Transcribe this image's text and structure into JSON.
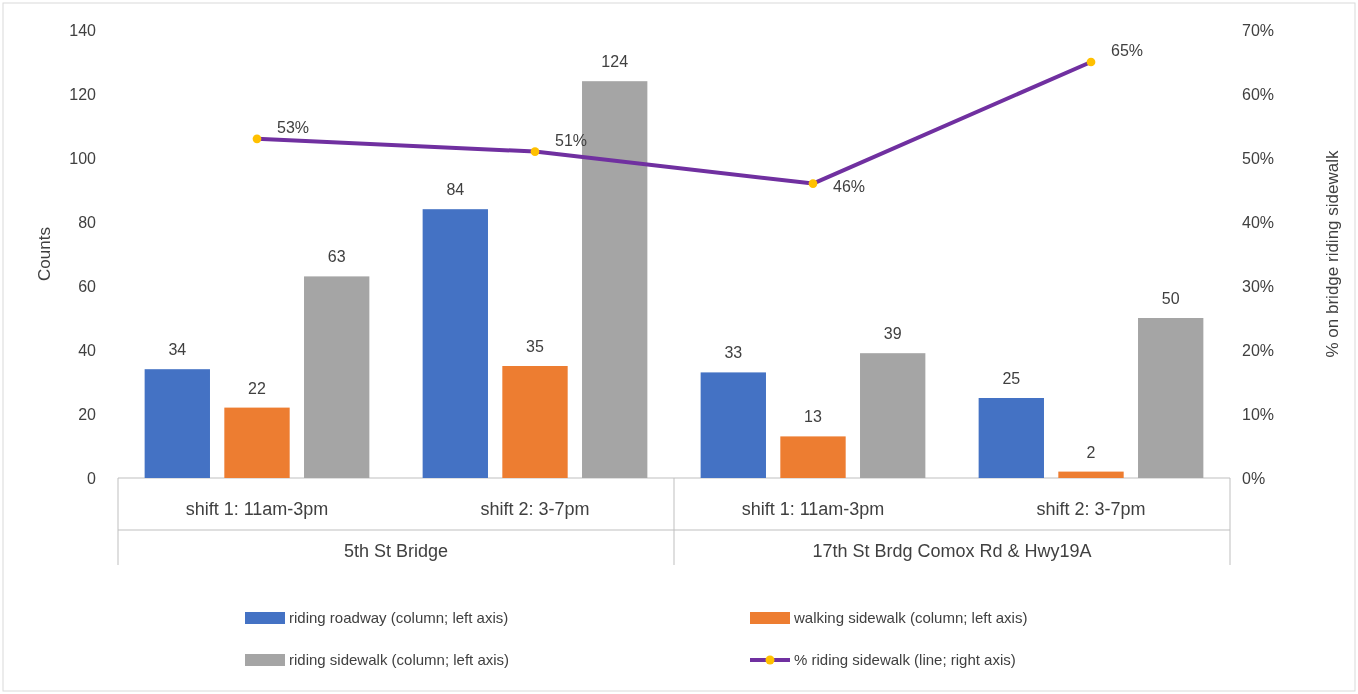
{
  "chart_data": {
    "type": "bar",
    "ylabel": "Counts",
    "y2label": "% on bridge riding sidewalk",
    "categories": [
      "shift 1: 11am-3pm",
      "shift 2: 3-7pm",
      "shift 1: 11am-3pm",
      "shift 2: 3-7pm"
    ],
    "annotations": [
      "5th St Bridge",
      "17th St Brdg Comox Rd & Hwy19A"
    ],
    "series": [
      {
        "name": "riding roadway (column; left axis)",
        "color": "#4472c4",
        "values": [
          34,
          84,
          33,
          25
        ]
      },
      {
        "name": "walking sidewalk (column; left axis)",
        "color": "#ed7d31",
        "values": [
          22,
          35,
          13,
          2
        ]
      },
      {
        "name": "riding sidewalk (column; left axis)",
        "color": "#a5a5a5",
        "values": [
          63,
          124,
          39,
          50
        ]
      },
      {
        "name": "% riding sidewalk (line; right axis)",
        "type": "line",
        "axis": "y2",
        "color": "#7030a0",
        "marker": "circle",
        "values": [
          53,
          51,
          46,
          65
        ],
        "value_labels": [
          "53%",
          "51%",
          "46%",
          "65%"
        ]
      }
    ],
    "data_labels": true,
    "grid": false,
    "legend": "bottom",
    "ylim": [
      0,
      140
    ],
    "yticks": [
      0,
      20,
      40,
      60,
      80,
      100,
      120,
      140
    ],
    "y2lim": [
      0,
      70
    ],
    "y2ticks": [
      {
        "value": 0,
        "label": "0%"
      },
      {
        "value": 10,
        "label": "10%"
      },
      {
        "value": 20,
        "label": "20%"
      },
      {
        "value": 30,
        "label": "30%"
      },
      {
        "value": 40,
        "label": "40%"
      },
      {
        "value": 50,
        "label": "50%"
      },
      {
        "value": 60,
        "label": "60%"
      },
      {
        "value": 70,
        "label": "70%"
      }
    ]
  }
}
